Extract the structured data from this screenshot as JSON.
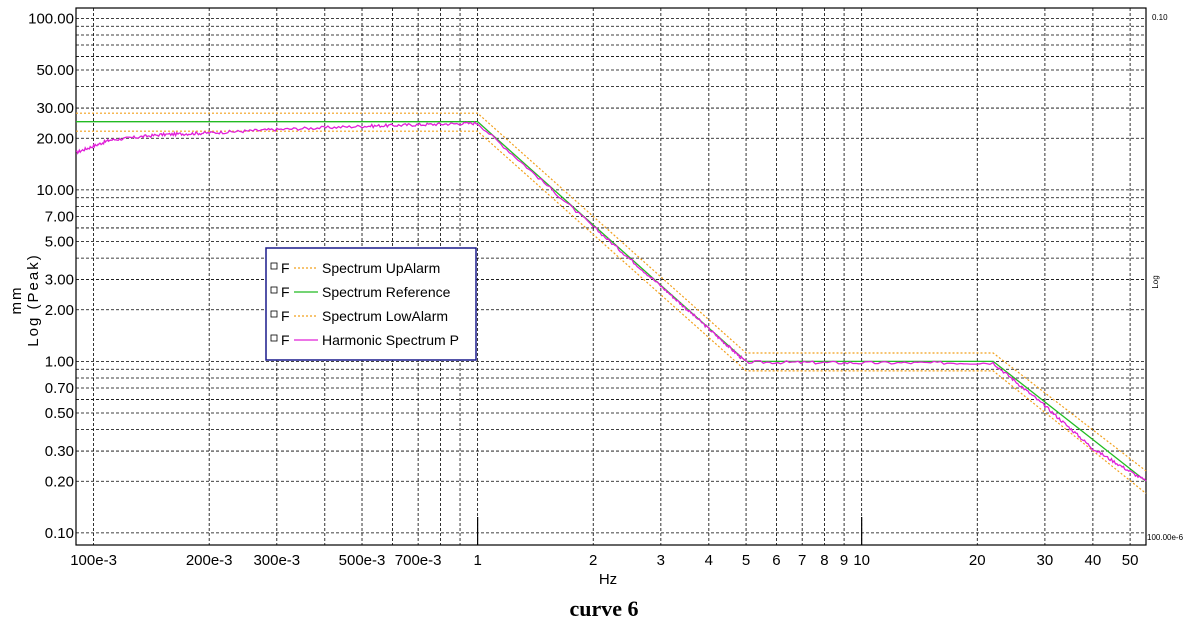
{
  "chart_data": {
    "type": "line",
    "title": "",
    "xlabel": "Hz",
    "ylabel_lines": [
      "mm",
      "Log (Peak)"
    ],
    "x_scale": "log",
    "y_scale": "log",
    "xlim": [
      0.09,
      55
    ],
    "ylim": [
      0.085,
      115
    ],
    "x_ticks": [
      {
        "v": 0.1,
        "label": "100e-3"
      },
      {
        "v": 0.2,
        "label": "200e-3"
      },
      {
        "v": 0.3,
        "label": "300e-3"
      },
      {
        "v": 0.5,
        "label": "500e-3"
      },
      {
        "v": 0.7,
        "label": "700e-3"
      },
      {
        "v": 1,
        "label": "1"
      },
      {
        "v": 2,
        "label": "2"
      },
      {
        "v": 3,
        "label": "3"
      },
      {
        "v": 4,
        "label": "4"
      },
      {
        "v": 5,
        "label": "5"
      },
      {
        "v": 6,
        "label": "6"
      },
      {
        "v": 7,
        "label": "7"
      },
      {
        "v": 8,
        "label": "8"
      },
      {
        "v": 9,
        "label": "9"
      },
      {
        "v": 10,
        "label": "10"
      },
      {
        "v": 20,
        "label": "20"
      },
      {
        "v": 30,
        "label": "30"
      },
      {
        "v": 40,
        "label": "40"
      },
      {
        "v": 50,
        "label": "50"
      }
    ],
    "x_minor_grid": [
      0.4,
      0.6,
      0.8,
      0.9
    ],
    "y_ticks": [
      {
        "v": 100,
        "label": "100.00"
      },
      {
        "v": 50,
        "label": "50.00"
      },
      {
        "v": 30,
        "label": "30.00"
      },
      {
        "v": 20,
        "label": "20.00"
      },
      {
        "v": 10,
        "label": "10.00"
      },
      {
        "v": 7,
        "label": "7.00"
      },
      {
        "v": 5,
        "label": "5.00"
      },
      {
        "v": 3,
        "label": "3.00"
      },
      {
        "v": 2,
        "label": "2.00"
      },
      {
        "v": 1,
        "label": "1.00"
      },
      {
        "v": 0.7,
        "label": "0.70"
      },
      {
        "v": 0.5,
        "label": "0.50"
      },
      {
        "v": 0.3,
        "label": "0.30"
      },
      {
        "v": 0.2,
        "label": "0.20"
      },
      {
        "v": 0.1,
        "label": "0.10"
      }
    ],
    "y_minor_grid": [
      90,
      80,
      70,
      60,
      40,
      9,
      8,
      6,
      4,
      0.9,
      0.8,
      0.6,
      0.4
    ],
    "right_axis": {
      "top_label": "0.10",
      "mid_label": "Log",
      "bottom_label": "100.00e-6"
    },
    "grid": true,
    "legend_position": "left-middle",
    "series": [
      {
        "name": "Spectrum UpAlarm",
        "style": "dotted",
        "color": "#f2a01c",
        "x": [
          0.09,
          1,
          5,
          22,
          55
        ],
        "y": [
          28,
          28,
          1.12,
          1.12,
          0.23
        ]
      },
      {
        "name": "Spectrum Reference",
        "style": "solid",
        "color": "#22bb22",
        "x": [
          0.09,
          1,
          5,
          22,
          55
        ],
        "y": [
          25,
          25,
          1.0,
          1.0,
          0.2
        ]
      },
      {
        "name": "Spectrum LowAlarm",
        "style": "dotted",
        "color": "#f2a01c",
        "x": [
          0.09,
          1,
          5,
          22,
          55
        ],
        "y": [
          22,
          22,
          0.88,
          0.88,
          0.17
        ]
      },
      {
        "name": "Harmonic Spectrum P",
        "style": "solid",
        "color": "#e020d8",
        "x": [
          0.09,
          0.11,
          0.15,
          0.2,
          0.3,
          0.5,
          0.7,
          1,
          2,
          3,
          4,
          5,
          10,
          22,
          30,
          40,
          55
        ],
        "y": [
          16.5,
          19.5,
          21,
          21.5,
          22.5,
          23.5,
          24,
          24.5,
          6.1,
          2.75,
          1.55,
          0.99,
          0.98,
          0.98,
          0.55,
          0.31,
          0.2
        ]
      }
    ],
    "legend_entries": [
      {
        "prefix": "F",
        "name": "Spectrum UpAlarm",
        "color": "#f2a01c",
        "style": "dotted"
      },
      {
        "prefix": "F",
        "name": "Spectrum Reference",
        "color": "#22bb22",
        "style": "solid"
      },
      {
        "prefix": "F",
        "name": "Spectrum LowAlarm",
        "color": "#f2a01c",
        "style": "dotted"
      },
      {
        "prefix": "F",
        "name": "Harmonic Spectrum P",
        "color": "#e020d8",
        "style": "solid"
      }
    ],
    "caption": "curve 6"
  }
}
